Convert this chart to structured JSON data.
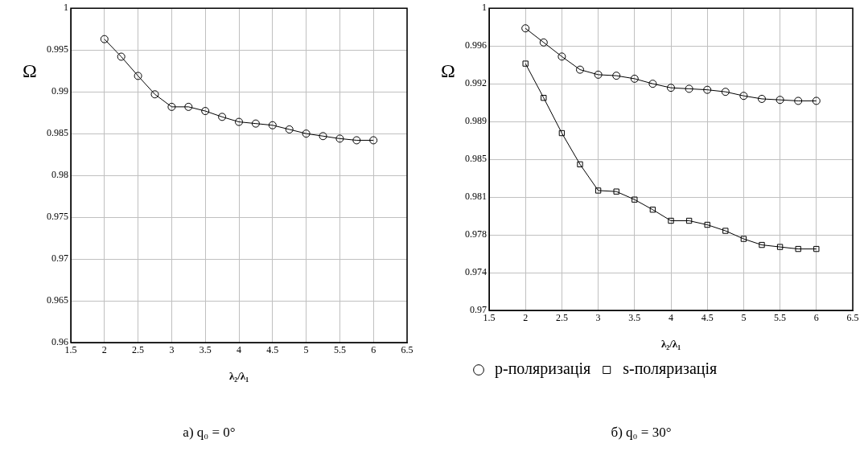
{
  "chart_data": [
    {
      "type": "line",
      "xlabel": "λ₂/λ₁",
      "ylabel": "Ω",
      "annotations": [
        "а) q₀ = 0°"
      ],
      "x": [
        2,
        2.25,
        2.5,
        2.75,
        3,
        3.25,
        3.5,
        3.75,
        4,
        4.25,
        4.5,
        4.75,
        5,
        5.25,
        5.5,
        5.75,
        6
      ],
      "series": [
        {
          "color": "#000000",
          "marker": "circle",
          "values": [
            0.9963,
            0.9942,
            0.9919,
            0.9897,
            0.9882,
            0.9882,
            0.9877,
            0.987,
            0.9864,
            0.9862,
            0.986,
            0.9855,
            0.985,
            0.9847,
            0.9844,
            0.9842,
            0.9842
          ]
        }
      ],
      "xlim": [
        1.5,
        6.5
      ],
      "xticks": [
        1.5,
        2,
        2.5,
        3,
        3.5,
        4,
        4.5,
        5,
        5.5,
        6,
        6.5
      ],
      "ylim": [
        0.96,
        1
      ],
      "yticks": [
        0.96,
        0.965,
        0.97,
        0.975,
        0.98,
        0.985,
        0.99,
        0.995,
        1
      ],
      "grid": true,
      "legend": false
    },
    {
      "type": "line",
      "xlabel": "λ₂/λ₁",
      "ylabel": "Ω",
      "annotations": [
        "б) q₀ = 30°"
      ],
      "x": [
        2,
        2.25,
        2.5,
        2.75,
        3,
        3.25,
        3.5,
        3.75,
        4,
        4.25,
        4.5,
        4.75,
        5,
        5.25,
        5.5,
        5.75,
        6
      ],
      "series": [
        {
          "name": "p-поляризація",
          "color": "#000000",
          "marker": "circle",
          "values": [
            0.998,
            0.9966,
            0.9952,
            0.9939,
            0.9934,
            0.9933,
            0.993,
            0.9925,
            0.9921,
            0.992,
            0.9919,
            0.9917,
            0.9913,
            0.991,
            0.9909,
            0.9908,
            0.9908
          ]
        },
        {
          "name": "s-поляризація",
          "color": "#000000",
          "marker": "square",
          "values": [
            0.9945,
            0.9911,
            0.9876,
            0.9845,
            0.9819,
            0.9818,
            0.981,
            0.98,
            0.9789,
            0.9789,
            0.9785,
            0.9779,
            0.9771,
            0.9765,
            0.9763,
            0.9761,
            0.9761
          ]
        }
      ],
      "xlim": [
        1.5,
        6.5
      ],
      "xticks": [
        1.5,
        2,
        2.5,
        3,
        3.5,
        4,
        4.5,
        5,
        5.5,
        6,
        6.5
      ],
      "ylim": [
        0.97,
        1
      ],
      "yticks": [
        0.97,
        {
          "value": 0.97375,
          "label": "0.974"
        },
        {
          "value": 0.9775,
          "label": "0.978"
        },
        {
          "value": 0.98125,
          "label": "0.981"
        },
        0.985,
        {
          "value": 0.98875,
          "label": "0.989"
        },
        {
          "value": 0.9925,
          "label": "0.992"
        },
        {
          "value": 0.99625,
          "label": "0.996"
        },
        1
      ],
      "grid": true,
      "legend": "bottom"
    }
  ]
}
